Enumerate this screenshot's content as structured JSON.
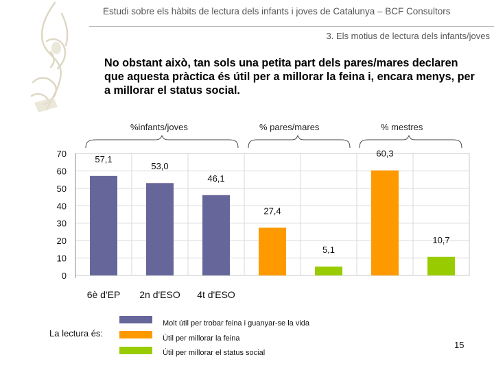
{
  "header": {
    "title": "Estudi sobre els hàbits de lectura dels infants i joves de Catalunya – BCF Consultors",
    "section": "3. Els motius de lectura dels infants/joves"
  },
  "headline": "No obstant això, tan sols una petita part dels pares/mares declaren que aquesta pràctica és útil per a millorar la feina i, encara menys, per a millorar el status social.",
  "group_labels": [
    "%infants/joves",
    "% pares/mares",
    "% mestres"
  ],
  "legend": {
    "prefix": "La lectura és:",
    "items": [
      {
        "label": "Molt útil per trobar feina i guanyar-se la vida",
        "color": "#67669a"
      },
      {
        "label": "Útil per millorar la feina",
        "color": "#ff9900"
      },
      {
        "label": "Útil per millorar el status social",
        "color": "#99cc00"
      }
    ]
  },
  "page_number": "15",
  "chart_data": {
    "type": "bar",
    "ylim": [
      0,
      70
    ],
    "yticks": [
      0,
      10,
      20,
      30,
      40,
      50,
      60,
      70
    ],
    "categories": [
      "6è d'EP",
      "2n d'ESO",
      "4t d'ESO",
      "",
      "",
      "",
      "",
      ""
    ],
    "bars": [
      {
        "label": "57,1",
        "value": 57.1,
        "series": 0
      },
      {
        "label": "53,0",
        "value": 53.0,
        "series": 0
      },
      {
        "label": "46,1",
        "value": 46.1,
        "series": 0
      },
      {
        "label": "27,4",
        "value": 27.4,
        "series": 1
      },
      {
        "label": "5,1",
        "value": 5.1,
        "series": 2
      },
      {
        "label": "60,3",
        "value": 60.3,
        "series": 1
      },
      {
        "label": "10,7",
        "value": 10.7,
        "series": 2
      }
    ],
    "grid": true
  }
}
